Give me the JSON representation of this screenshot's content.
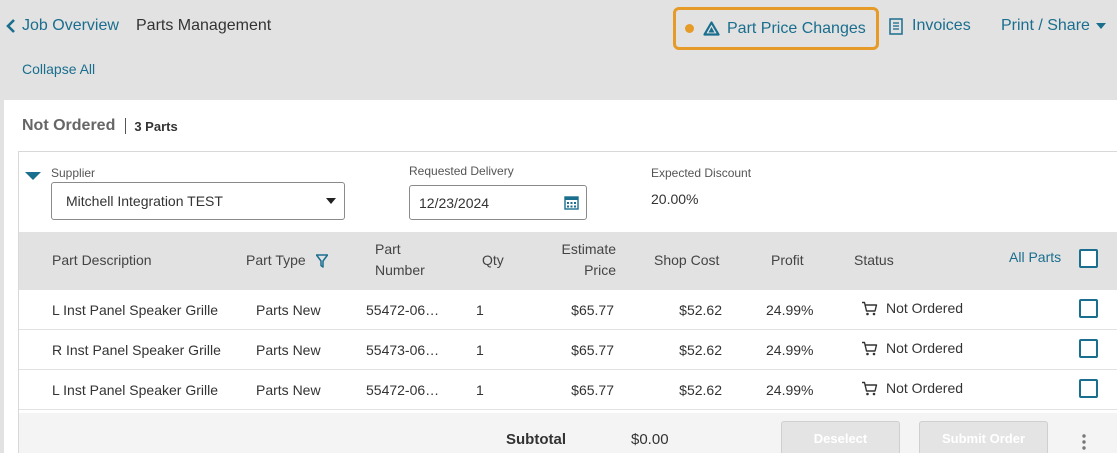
{
  "header": {
    "back_label": "Job Overview",
    "page_title": "Parts Management",
    "collapse_all": "Collapse All",
    "part_price_changes": "Part Price Changes",
    "invoices": "Invoices",
    "print_share": "Print / Share"
  },
  "colors": {
    "accent": "#1a6e8e",
    "highlight": "#e69b28",
    "header_bg": "#e2e2e2"
  },
  "group": {
    "status_title": "Not Ordered",
    "parts_count": "3 Parts",
    "supplier_label": "Supplier",
    "supplier_value": "Mitchell Integration TEST",
    "delivery_label": "Requested Delivery",
    "delivery_value": "12/23/2024",
    "discount_label": "Expected Discount",
    "discount_value": "20.00%"
  },
  "table": {
    "headers": {
      "description": "Part Description",
      "type": "Part Type",
      "number_line1": "Part",
      "number_line2": "Number",
      "qty": "Qty",
      "estimate_line1": "Estimate",
      "estimate_line2": "Price",
      "shop_cost": "Shop Cost",
      "profit": "Profit",
      "status": "Status",
      "all_parts": "All Parts"
    },
    "rows": [
      {
        "description": "L Inst Panel Speaker Grille",
        "type": "Parts New",
        "number": "55472-06…",
        "qty": "1",
        "estimate": "$65.77",
        "shop_cost": "$52.62",
        "profit": "24.99%",
        "status": "Not Ordered"
      },
      {
        "description": "R Inst Panel Speaker Grille",
        "type": "Parts New",
        "number": "55473-06…",
        "qty": "1",
        "estimate": "$65.77",
        "shop_cost": "$52.62",
        "profit": "24.99%",
        "status": "Not Ordered"
      },
      {
        "description": "L Inst Panel Speaker Grille",
        "type": "Parts New",
        "number": "55472-06…",
        "qty": "1",
        "estimate": "$65.77",
        "shop_cost": "$52.62",
        "profit": "24.99%",
        "status": "Not Ordered"
      }
    ]
  },
  "footer": {
    "subtotal_label": "Subtotal",
    "subtotal_value": "$0.00",
    "deselect": "Deselect",
    "submit_order": "Submit Order"
  }
}
